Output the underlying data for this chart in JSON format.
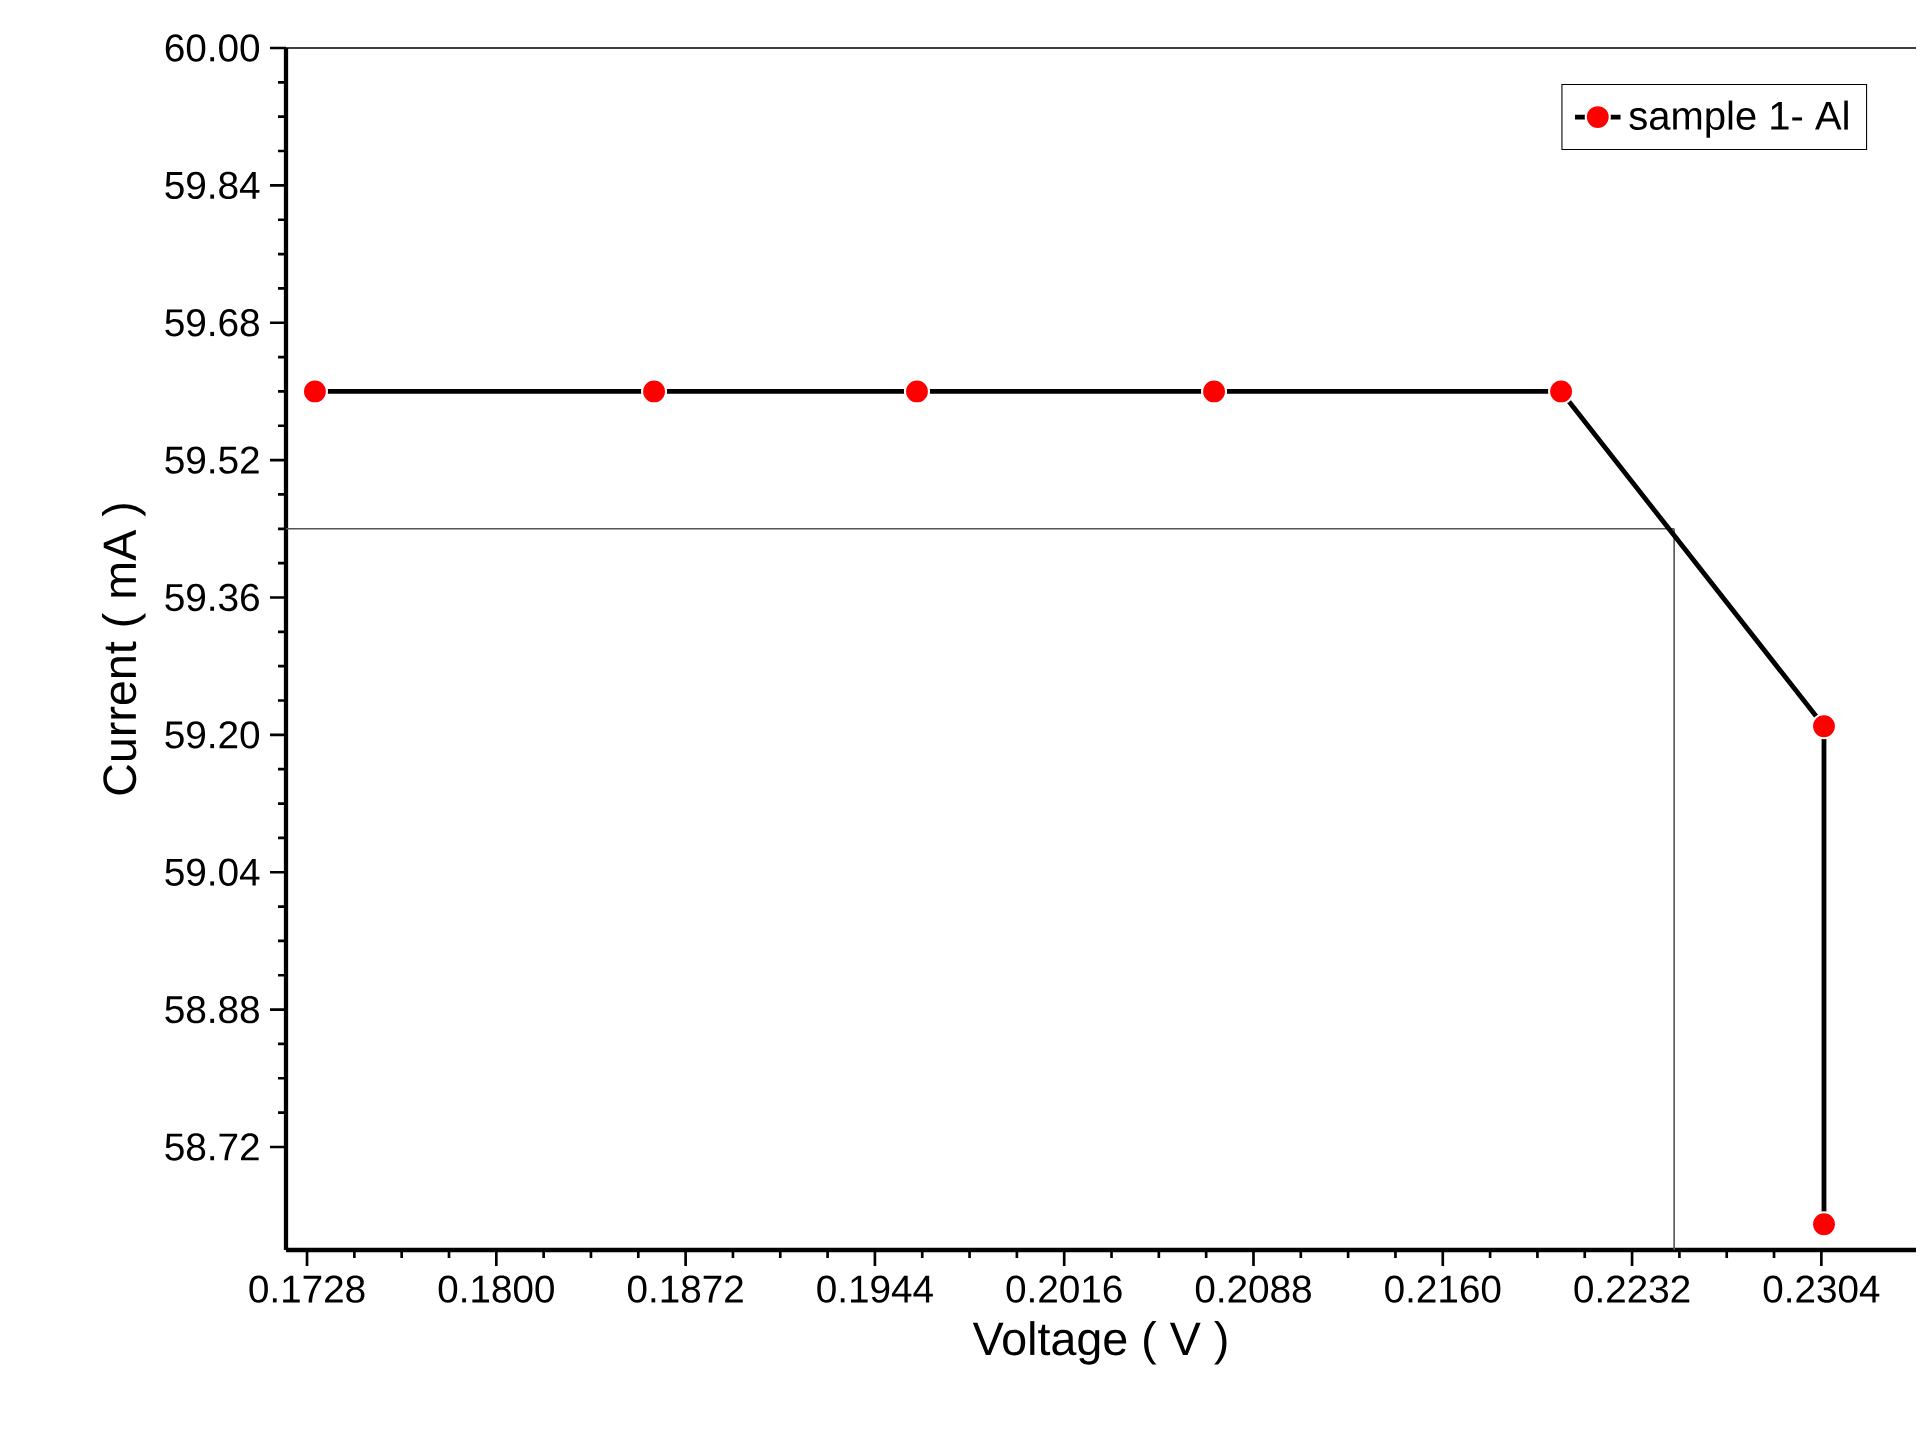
{
  "chart_data": {
    "type": "line",
    "xlabel": "Voltage ( V )",
    "ylabel": "Current ( mA )",
    "series": [
      {
        "name": "sample 1- Al",
        "color": "#ff0000",
        "x": [
          0.1731,
          0.186,
          0.196,
          0.2073,
          0.2205,
          0.2305,
          0.2305
        ],
        "values": [
          59.6,
          59.6,
          59.6,
          59.6,
          59.6,
          59.21,
          58.63
        ]
      }
    ],
    "marker": "circle",
    "line_style": "solid",
    "legend": "top right",
    "grid": false,
    "xlim": [
      0.172,
      0.234
    ],
    "ylim": [
      58.6,
      60.0
    ],
    "xticks": [
      {
        "value": 0.1728,
        "label": "0.1728"
      },
      {
        "value": 0.18,
        "label": "0.1800"
      },
      {
        "value": 0.1872,
        "label": "0.1872"
      },
      {
        "value": 0.1944,
        "label": "0.1944"
      },
      {
        "value": 0.2016,
        "label": "0.2016"
      },
      {
        "value": 0.2088,
        "label": "0.2088"
      },
      {
        "value": 0.216,
        "label": "0.2160"
      },
      {
        "value": 0.2232,
        "label": "0.2232"
      },
      {
        "value": 0.2304,
        "label": "0.2304"
      }
    ],
    "yticks": [
      {
        "value": 58.72,
        "label": "58.72"
      },
      {
        "value": 58.88,
        "label": "58.88"
      },
      {
        "value": 59.04,
        "label": "59.04"
      },
      {
        "value": 59.2,
        "label": "59.20"
      },
      {
        "value": 59.36,
        "label": "59.36"
      },
      {
        "value": 59.52,
        "label": "59.52"
      },
      {
        "value": 59.68,
        "label": "59.68"
      },
      {
        "value": 59.84,
        "label": "59.84"
      },
      {
        "value": 60,
        "label": "60.00"
      }
    ],
    "ref_lines": [
      {
        "axis": "y",
        "value": 59.44,
        "color": "#555555"
      },
      {
        "axis": "x",
        "value": 0.2248,
        "color": "#555555"
      }
    ]
  }
}
